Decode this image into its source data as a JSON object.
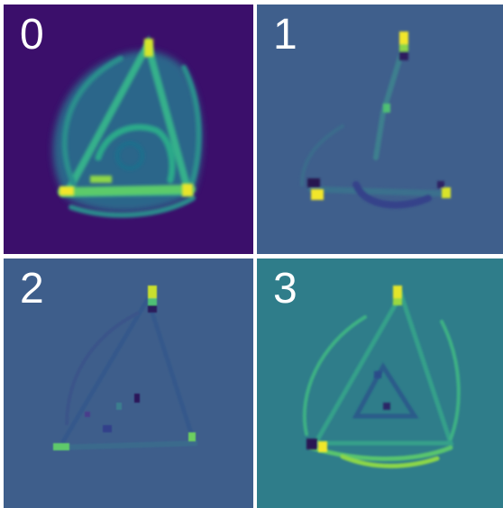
{
  "panels": [
    {
      "label": "0",
      "background": "#3b0f6b"
    },
    {
      "label": "1",
      "background": "#3f5f8c"
    },
    {
      "label": "2",
      "background": "#3e5e8b"
    },
    {
      "label": "3",
      "background": "#2f7d8a"
    }
  ],
  "colors": {
    "divider": "#ffffff",
    "low": "#2b0f4f",
    "mid": "#26a089",
    "high": "#f2e62a"
  }
}
